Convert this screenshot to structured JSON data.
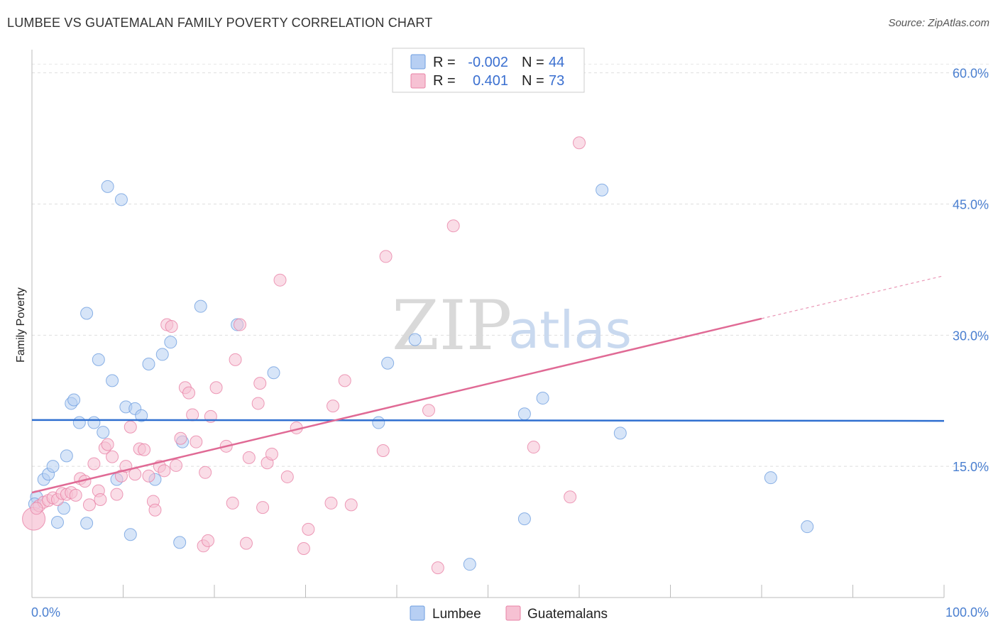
{
  "title": "LUMBEE VS GUATEMALAN FAMILY POVERTY CORRELATION CHART",
  "source": "Source: ZipAtlas.com",
  "watermark": {
    "zip": "ZIP",
    "atlas": "atlas"
  },
  "colors": {
    "blue": "#6f9fe0",
    "blue_fill": "#b7cff3",
    "pink": "#e882a6",
    "pink_fill": "#f6c1d3",
    "blue_line": "#2f6fd0",
    "pink_line": "#e06a95"
  },
  "legend": {
    "r_label": "R =",
    "n_label": "N =",
    "rows": [
      {
        "series": "Lumbee",
        "r": "-0.002",
        "n": "44"
      },
      {
        "series": "Guatemalans",
        "r": "0.401",
        "n": "73"
      }
    ]
  },
  "chart_data": {
    "type": "scatter",
    "title": "LUMBEE VS GUATEMALAN FAMILY POVERTY CORRELATION CHART",
    "xlabel": "",
    "ylabel": "Family Poverty",
    "xlim": [
      0,
      100
    ],
    "ylim": [
      0,
      62
    ],
    "x_tick_labels": [
      "0.0%",
      "100.0%"
    ],
    "y_ticks": [
      15,
      30,
      45,
      60
    ],
    "y_tick_labels": [
      "15.0%",
      "30.0%",
      "45.0%",
      "60.0%"
    ],
    "grid": true,
    "legend_position": "top-center",
    "series": [
      {
        "name": "Lumbee",
        "color": "#6f9fe0",
        "trend": {
          "x": [
            0,
            100
          ],
          "y": [
            20.3,
            20.2
          ]
        },
        "points": [
          [
            0.5,
            11.5
          ],
          [
            1.3,
            13.5
          ],
          [
            1.8,
            14.1
          ],
          [
            2.3,
            15.0
          ],
          [
            2.8,
            8.6
          ],
          [
            3.5,
            10.2
          ],
          [
            3.8,
            16.2
          ],
          [
            4.3,
            22.2
          ],
          [
            4.6,
            22.6
          ],
          [
            5.2,
            20.0
          ],
          [
            6.0,
            8.5
          ],
          [
            6.0,
            32.5
          ],
          [
            6.8,
            20.0
          ],
          [
            7.3,
            27.2
          ],
          [
            7.8,
            18.9
          ],
          [
            8.3,
            47.0
          ],
          [
            8.8,
            24.8
          ],
          [
            9.3,
            13.5
          ],
          [
            9.8,
            45.5
          ],
          [
            10.3,
            21.8
          ],
          [
            10.8,
            7.2
          ],
          [
            11.3,
            21.6
          ],
          [
            12.0,
            20.8
          ],
          [
            12.8,
            26.7
          ],
          [
            13.5,
            13.5
          ],
          [
            14.3,
            27.8
          ],
          [
            15.2,
            29.2
          ],
          [
            16.2,
            6.3
          ],
          [
            16.5,
            17.8
          ],
          [
            18.5,
            33.3
          ],
          [
            22.5,
            31.2
          ],
          [
            26.5,
            25.7
          ],
          [
            38.0,
            20.0
          ],
          [
            39.0,
            26.8
          ],
          [
            42.0,
            29.5
          ],
          [
            48.0,
            3.8
          ],
          [
            54.0,
            9.0
          ],
          [
            54.0,
            21.0
          ],
          [
            56.0,
            22.8
          ],
          [
            62.5,
            46.6
          ],
          [
            64.5,
            18.8
          ],
          [
            81.0,
            13.7
          ],
          [
            85.0,
            8.1
          ],
          [
            0.3,
            10.7
          ]
        ]
      },
      {
        "name": "Guatemalans",
        "color": "#e882a6",
        "trend": {
          "x": [
            0,
            80
          ],
          "y": [
            12.0,
            31.9
          ]
        },
        "trend_extension": {
          "x": [
            80,
            100
          ],
          "y": [
            31.9,
            36.8
          ]
        },
        "points": [
          [
            0.2,
            9.0
          ],
          [
            0.8,
            10.5
          ],
          [
            1.3,
            10.9
          ],
          [
            1.8,
            11.1
          ],
          [
            2.3,
            11.4
          ],
          [
            2.8,
            11.2
          ],
          [
            3.3,
            11.9
          ],
          [
            3.8,
            11.8
          ],
          [
            4.3,
            12.0
          ],
          [
            4.8,
            11.7
          ],
          [
            5.3,
            13.6
          ],
          [
            5.8,
            13.3
          ],
          [
            6.3,
            10.6
          ],
          [
            6.8,
            15.3
          ],
          [
            7.3,
            12.2
          ],
          [
            7.5,
            11.2
          ],
          [
            8.0,
            17.1
          ],
          [
            8.3,
            17.5
          ],
          [
            8.8,
            16.1
          ],
          [
            9.3,
            11.8
          ],
          [
            9.8,
            13.9
          ],
          [
            10.3,
            15.0
          ],
          [
            10.8,
            19.5
          ],
          [
            11.3,
            14.1
          ],
          [
            11.8,
            17.0
          ],
          [
            12.3,
            16.9
          ],
          [
            12.8,
            13.9
          ],
          [
            13.3,
            11.0
          ],
          [
            13.5,
            10.0
          ],
          [
            14.0,
            15.0
          ],
          [
            14.5,
            14.5
          ],
          [
            14.8,
            31.2
          ],
          [
            15.3,
            31.0
          ],
          [
            15.8,
            15.1
          ],
          [
            16.3,
            18.2
          ],
          [
            16.8,
            24.0
          ],
          [
            17.2,
            23.4
          ],
          [
            17.6,
            20.9
          ],
          [
            18.0,
            17.8
          ],
          [
            18.8,
            5.9
          ],
          [
            19.0,
            14.3
          ],
          [
            19.3,
            6.5
          ],
          [
            19.6,
            20.7
          ],
          [
            20.2,
            24.0
          ],
          [
            21.3,
            17.3
          ],
          [
            22.0,
            10.8
          ],
          [
            22.3,
            27.2
          ],
          [
            22.8,
            31.2
          ],
          [
            23.5,
            6.2
          ],
          [
            23.8,
            16.0
          ],
          [
            24.8,
            22.2
          ],
          [
            25.0,
            24.5
          ],
          [
            25.3,
            10.3
          ],
          [
            25.8,
            15.4
          ],
          [
            26.3,
            16.4
          ],
          [
            27.2,
            36.3
          ],
          [
            28.0,
            13.8
          ],
          [
            29.0,
            19.4
          ],
          [
            29.8,
            5.6
          ],
          [
            30.3,
            7.8
          ],
          [
            32.8,
            10.8
          ],
          [
            33.0,
            21.9
          ],
          [
            34.3,
            24.8
          ],
          [
            35.0,
            10.6
          ],
          [
            38.5,
            16.8
          ],
          [
            38.8,
            39.0
          ],
          [
            43.5,
            21.4
          ],
          [
            44.5,
            3.4
          ],
          [
            46.2,
            42.5
          ],
          [
            55.0,
            17.2
          ],
          [
            59.0,
            11.5
          ],
          [
            60.0,
            52.0
          ],
          [
            0.5,
            10.2
          ]
        ]
      }
    ]
  },
  "bottom_legend": [
    {
      "label": "Lumbee"
    },
    {
      "label": "Guatemalans"
    }
  ]
}
